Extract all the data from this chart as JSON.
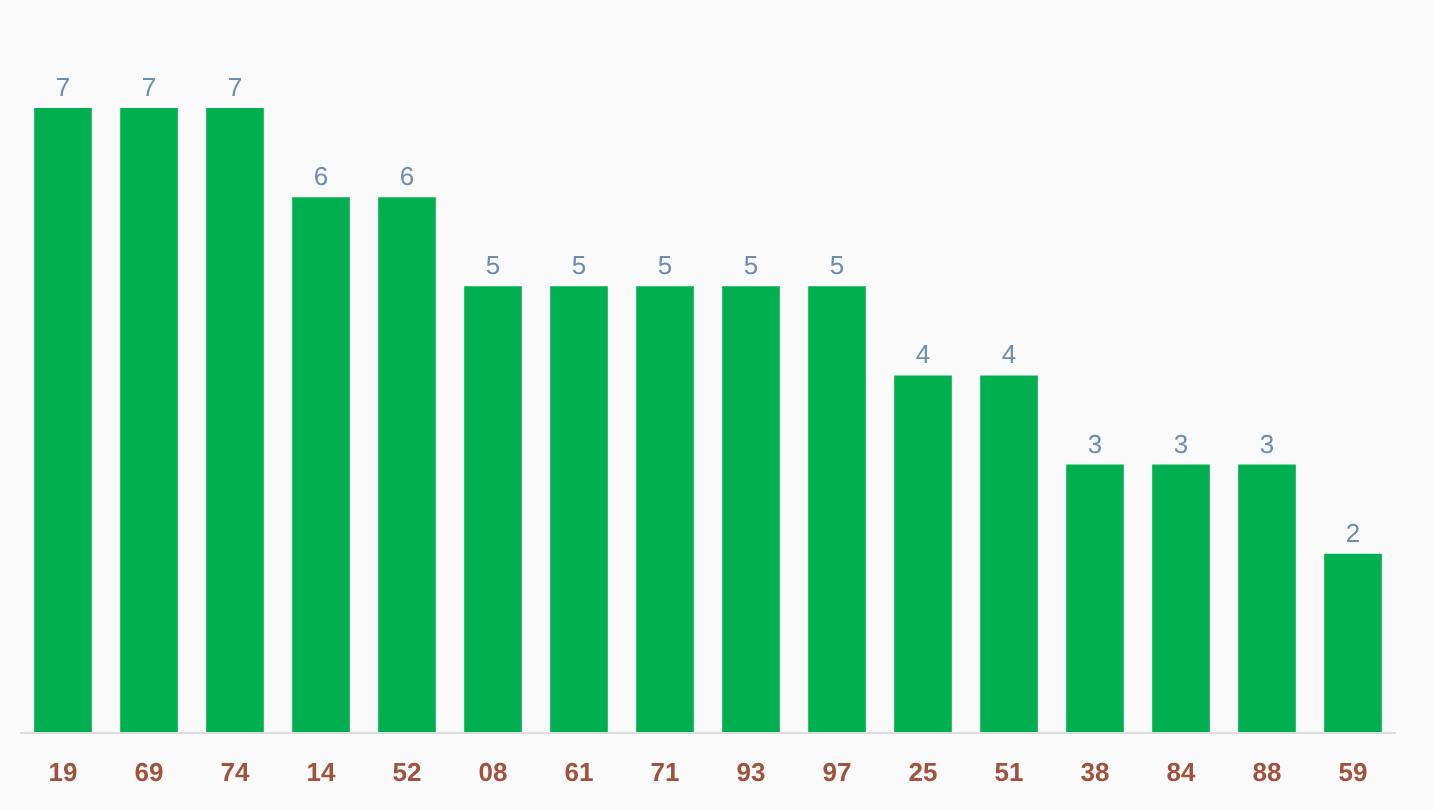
{
  "chart_data": {
    "type": "bar",
    "categories": [
      "19",
      "69",
      "74",
      "14",
      "52",
      "08",
      "61",
      "71",
      "93",
      "97",
      "25",
      "51",
      "38",
      "84",
      "88",
      "59"
    ],
    "values": [
      7,
      7,
      7,
      6,
      6,
      5,
      5,
      5,
      5,
      5,
      4,
      4,
      3,
      3,
      3,
      2
    ],
    "color": "#00b050",
    "data_labels": true,
    "tick_labels": "x"
  }
}
